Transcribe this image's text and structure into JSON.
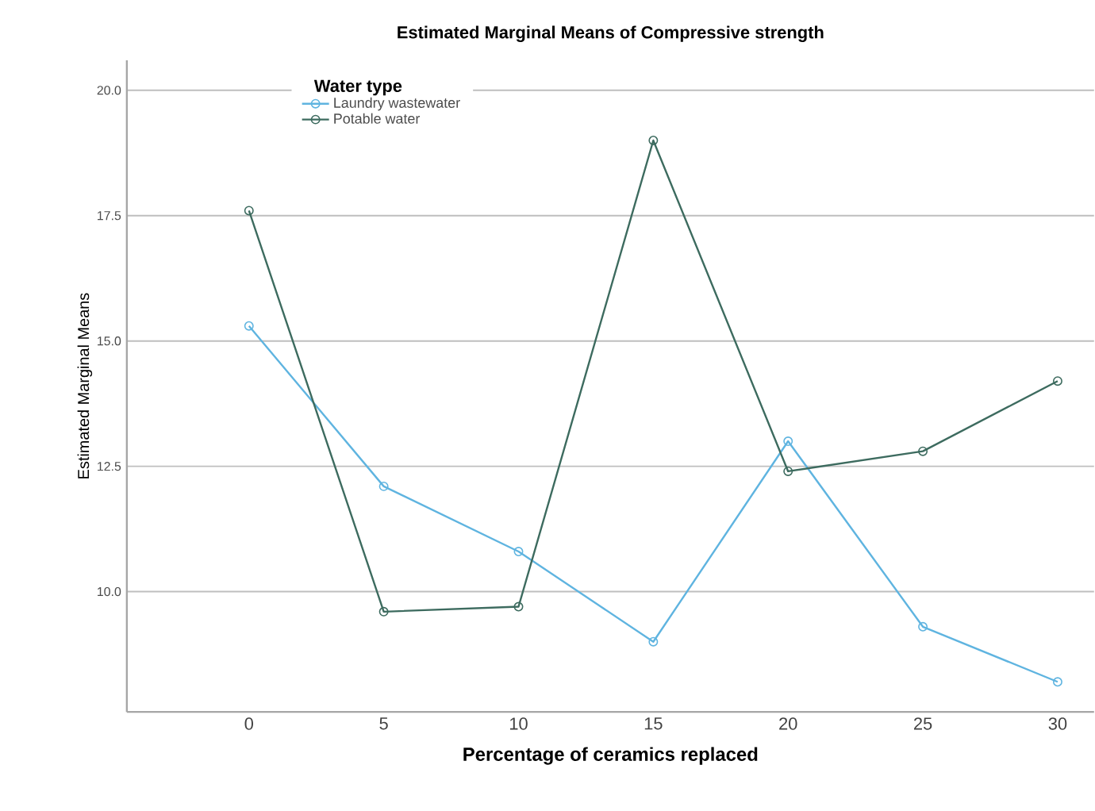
{
  "chart_data": {
    "type": "line",
    "title": "Estimated Marginal Means of Compressive strength",
    "xlabel": "Percentage of ceramics replaced",
    "ylabel": "Estimated Marginal Means",
    "legend_title": "Water type",
    "categories": [
      "0",
      "5",
      "10",
      "15",
      "20",
      "25",
      "30"
    ],
    "series": [
      {
        "name": "Laundry wastewater",
        "color": "#5fb4e0",
        "values": [
          15.3,
          12.1,
          10.8,
          9.0,
          13.0,
          9.3,
          8.2
        ]
      },
      {
        "name": "Potable water",
        "color": "#3d6b5f",
        "values": [
          17.6,
          9.6,
          9.7,
          19.0,
          12.4,
          12.8,
          14.2
        ]
      }
    ],
    "ylim": [
      7.6,
      20.6
    ],
    "yticks": [
      {
        "value": 10,
        "label": "10.0"
      },
      {
        "value": 12.5,
        "label": "12.5"
      },
      {
        "value": 15,
        "label": "15.0"
      },
      {
        "value": 17.5,
        "label": "17.5"
      },
      {
        "value": 20,
        "label": "20.0"
      }
    ],
    "grid": "y",
    "legend": "top left",
    "marker": "circle",
    "line_style": "solid"
  }
}
